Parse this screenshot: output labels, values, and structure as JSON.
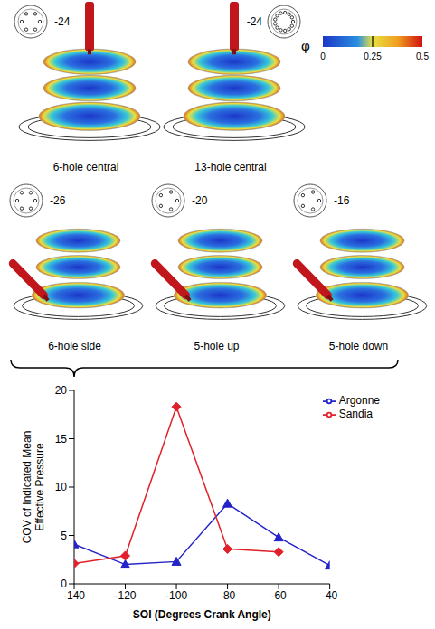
{
  "panels": [
    {
      "label": "6-hole central",
      "crank_angle": -24
    },
    {
      "label": "13-hole central",
      "crank_angle": -24
    },
    {
      "label": "6-hole side",
      "crank_angle": -26
    },
    {
      "label": "5-hole up",
      "crank_angle": -20
    },
    {
      "label": "5-hole down",
      "crank_angle": -16
    }
  ],
  "colorbar": {
    "label": "φ",
    "range": [
      0,
      0.5
    ],
    "ticks": [
      0,
      0.25,
      0.5
    ]
  },
  "chart_data": {
    "type": "line",
    "x": [
      -140,
      -120,
      -100,
      -80,
      -60,
      -40
    ],
    "series": [
      {
        "name": "Argonne",
        "color": "#2323c8",
        "marker": "triangle",
        "values": [
          4.1,
          2.0,
          2.3,
          8.3,
          4.8,
          1.9
        ]
      },
      {
        "name": "Sandia",
        "color": "#e0202a",
        "marker": "diamond",
        "values": [
          2.1,
          2.9,
          18.3,
          3.6,
          3.3,
          null
        ]
      }
    ],
    "xlim": [
      -140,
      -40
    ],
    "xticks": [
      -140,
      -120,
      -100,
      -80,
      -60,
      -40
    ],
    "ylim": [
      0,
      20
    ],
    "yticks": [
      0,
      5,
      10,
      15,
      20
    ],
    "x_label": "SOI (Degrees Crank Angle)",
    "y_label": "COV of Indicated Mean Effective Pressure",
    "legend": "upper right",
    "grid": false
  }
}
